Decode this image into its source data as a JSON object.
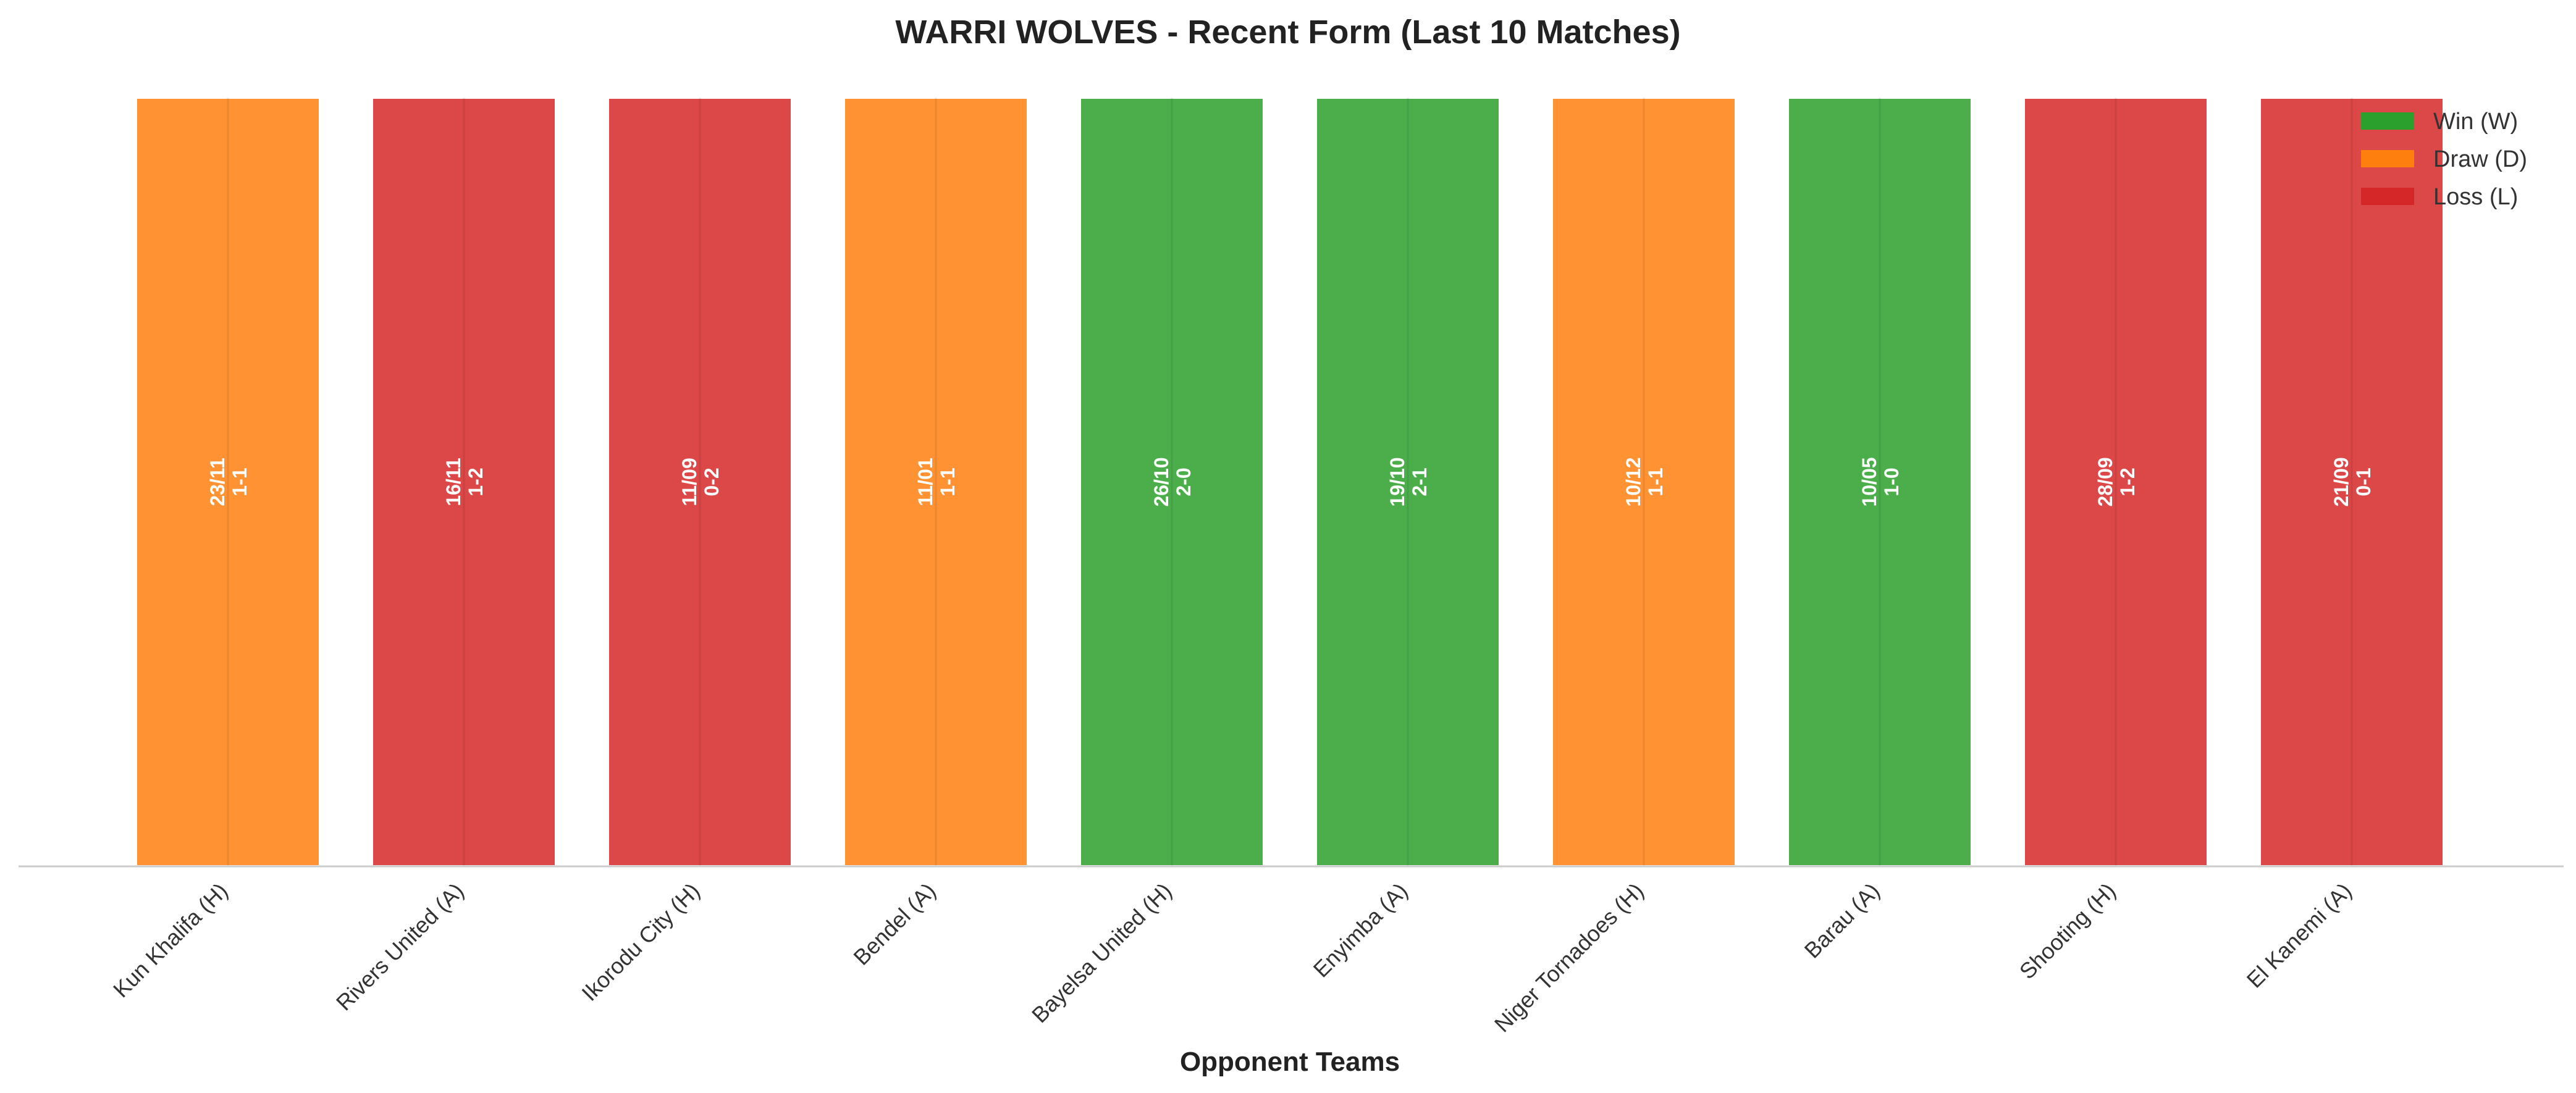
{
  "chart_data": {
    "type": "bar",
    "title": "WARRI WOLVES - Recent Form (Last 10 Matches)",
    "xlabel": "Opponent Teams",
    "ylabel": "",
    "ylim": [
      0,
      1
    ],
    "grid": false,
    "legend_position": "top-right",
    "categories": [
      "Kun Khalifa (H)",
      "Rivers United (A)",
      "Ikorodu City (H)",
      "Bendel (A)",
      "Bayelsa United (H)",
      "Enyimba (A)",
      "Niger Tornadoes (H)",
      "Barau (A)",
      "Shooting (H)",
      "El Kanemi (A)"
    ],
    "values": [
      1,
      1,
      1,
      1,
      1,
      1,
      1,
      1,
      1,
      1
    ],
    "results": [
      "D",
      "L",
      "L",
      "D",
      "W",
      "W",
      "D",
      "W",
      "L",
      "L"
    ],
    "dates": [
      "23/11",
      "16/11",
      "11/09",
      "11/01",
      "26/10",
      "19/10",
      "10/12",
      "10/05",
      "28/09",
      "21/09"
    ],
    "scores": [
      "1-1",
      "1-2",
      "0-2",
      "1-1",
      "2-0",
      "2-1",
      "1-1",
      "1-0",
      "1-2",
      "0-1"
    ],
    "legend": [
      {
        "key": "W",
        "label": "Win (W)",
        "color": "#2ca02c"
      },
      {
        "key": "D",
        "label": "Draw (D)",
        "color": "#ff7f0e"
      },
      {
        "key": "L",
        "label": "Loss (L)",
        "color": "#d62728"
      }
    ],
    "colors": {
      "W": "#2ca02c",
      "D": "#ff7f0e",
      "L": "#d62728"
    }
  }
}
